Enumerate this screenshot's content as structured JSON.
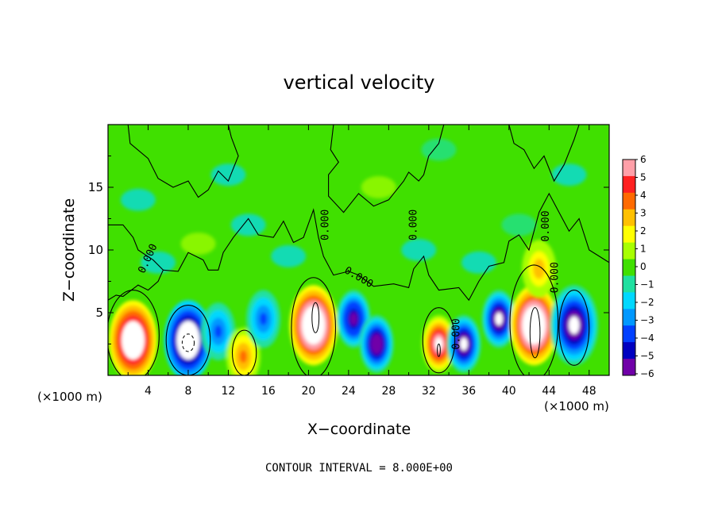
{
  "chart_data": {
    "type": "heatmap",
    "title": "vertical velocity",
    "xlabel": "X−coordinate",
    "ylabel": "Z−coordinate",
    "x_unit": "(×1000 m)",
    "x_unit_right": "(×1000 m)",
    "xlim": [
      0,
      50
    ],
    "ylim": [
      0,
      20
    ],
    "x_ticks": [
      4,
      8,
      12,
      16,
      20,
      24,
      28,
      32,
      36,
      40,
      44,
      48
    ],
    "x_tick_labels": [
      "4",
      "8",
      "12",
      "16",
      "20",
      "24",
      "28",
      "32",
      "36",
      "40",
      "44",
      "48"
    ],
    "y_ticks": [
      5,
      10,
      15
    ],
    "y_tick_labels": [
      "5",
      "10",
      "15"
    ],
    "colorbar": {
      "range": [
        -6,
        6
      ],
      "labels": [
        "6",
        "5",
        "4",
        "3",
        "2",
        "1",
        "0",
        "−1",
        "−2",
        "−3",
        "−4",
        "−5",
        "−6"
      ],
      "colors": [
        "#ff9fa8",
        "#ff2020",
        "#ff6a00",
        "#ffc000",
        "#ffff00",
        "#a8ff00",
        "#40e000",
        "#20e0a0",
        "#00d8ff",
        "#0098ff",
        "#0040ff",
        "#0000c0",
        "#7000a8"
      ]
    },
    "features": [
      {
        "x": 2.5,
        "z": 2.8,
        "w": 9.0
      },
      {
        "x": 8.0,
        "z": 2.8,
        "w": -9.0
      },
      {
        "x": 11.0,
        "z": 3.5,
        "w": -3.5
      },
      {
        "x": 13.5,
        "z": 1.5,
        "w": 4.0
      },
      {
        "x": 15.5,
        "z": 4.5,
        "w": -3.5
      },
      {
        "x": 20.5,
        "z": 4.0,
        "w": 9.5
      },
      {
        "x": 24.5,
        "z": 4.5,
        "w": -6.0
      },
      {
        "x": 26.8,
        "z": 2.5,
        "w": -6.5
      },
      {
        "x": 33.0,
        "z": 2.5,
        "w": 7.0
      },
      {
        "x": 35.5,
        "z": 2.5,
        "w": -7.0
      },
      {
        "x": 39.0,
        "z": 4.5,
        "w": -7.0
      },
      {
        "x": 42.5,
        "z": 4.0,
        "w": 9.5
      },
      {
        "x": 43.0,
        "z": 8.5,
        "w": 3.0
      },
      {
        "x": 46.5,
        "z": 4.0,
        "w": -7.5
      }
    ],
    "contour_labels": [
      {
        "text": "0.000",
        "x": 4.0,
        "z": 9.3,
        "angle": -65
      },
      {
        "text": "0.000",
        "x": 21.7,
        "z": 12.0,
        "angle": -90
      },
      {
        "text": "0.000",
        "x": 30.5,
        "z": 12.0,
        "angle": -90
      },
      {
        "text": "0.000",
        "x": 25.0,
        "z": 7.8,
        "angle": 30
      },
      {
        "text": "0.000",
        "x": 34.8,
        "z": 3.3,
        "angle": -90
      },
      {
        "text": "0.000",
        "x": 43.7,
        "z": 11.9,
        "angle": -90
      },
      {
        "text": "0.000",
        "x": 44.6,
        "z": 7.8,
        "angle": -90
      }
    ]
  },
  "footer": {
    "contour_interval": "CONTOUR INTERVAL = 8.000E+00"
  }
}
